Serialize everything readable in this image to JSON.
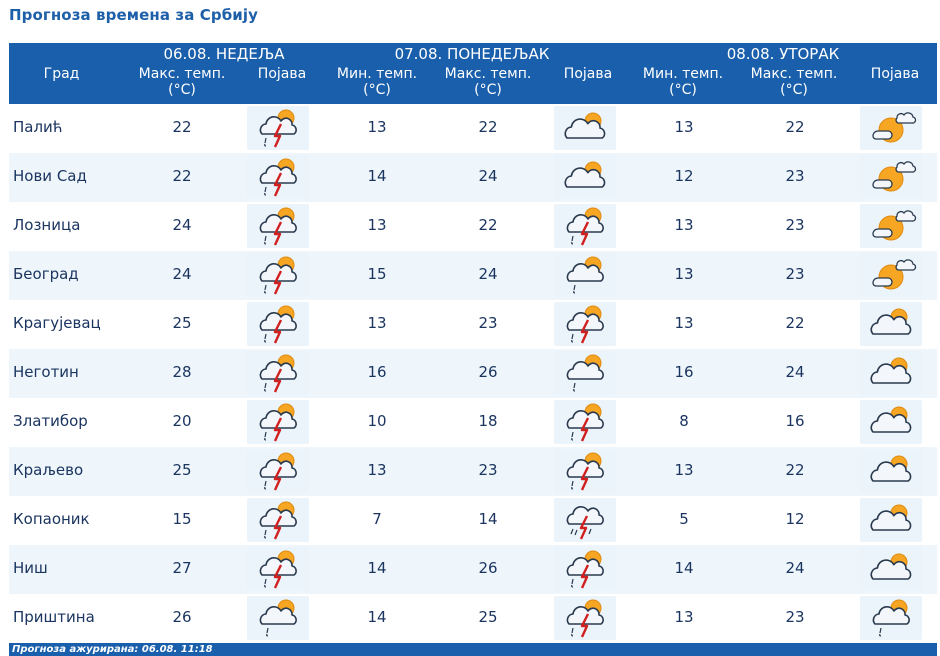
{
  "title": "Прогноза времена за Србију",
  "header": {
    "city_col": "Град",
    "days": [
      {
        "date": "06.08. НЕДЕЉА",
        "cols": [
          "Макс. темп. (°C)",
          "Појава"
        ]
      },
      {
        "date": "07.08. ПОНЕДЕЉАК",
        "cols": [
          "Мин. темп. (°C)",
          "Макс. темп. (°C)",
          "Појава"
        ]
      },
      {
        "date": "08.08. УТОРАК",
        "cols": [
          "Мин. темп. (°C)",
          "Макс. темп. (°C)",
          "Појава"
        ]
      }
    ]
  },
  "rows": [
    {
      "city": "Палић",
      "d1_max": "22",
      "d1_icon": "thunderstorm-icon",
      "d2_min": "13",
      "d2_max": "22",
      "d2_icon": "partly-cloudy-icon",
      "d3_min": "13",
      "d3_max": "22",
      "d3_icon": "mostly-sunny-icon"
    },
    {
      "city": "Нови Сад",
      "d1_max": "22",
      "d1_icon": "thunderstorm-icon",
      "d2_min": "14",
      "d2_max": "24",
      "d2_icon": "partly-cloudy-icon",
      "d3_min": "12",
      "d3_max": "23",
      "d3_icon": "mostly-sunny-icon"
    },
    {
      "city": "Лозница",
      "d1_max": "24",
      "d1_icon": "thunderstorm-icon",
      "d2_min": "13",
      "d2_max": "22",
      "d2_icon": "thunderstorm-icon",
      "d3_min": "13",
      "d3_max": "23",
      "d3_icon": "mostly-sunny-icon"
    },
    {
      "city": "Београд",
      "d1_max": "24",
      "d1_icon": "thunderstorm-icon",
      "d2_min": "15",
      "d2_max": "24",
      "d2_icon": "light-rain-icon",
      "d3_min": "13",
      "d3_max": "23",
      "d3_icon": "mostly-sunny-icon"
    },
    {
      "city": "Крагујевац",
      "d1_max": "25",
      "d1_icon": "thunderstorm-icon",
      "d2_min": "13",
      "d2_max": "23",
      "d2_icon": "thunderstorm-icon",
      "d3_min": "13",
      "d3_max": "22",
      "d3_icon": "partly-cloudy-icon"
    },
    {
      "city": "Неготин",
      "d1_max": "28",
      "d1_icon": "thunderstorm-icon",
      "d2_min": "16",
      "d2_max": "26",
      "d2_icon": "light-rain-icon",
      "d3_min": "16",
      "d3_max": "24",
      "d3_icon": "partly-cloudy-icon"
    },
    {
      "city": "Златибор",
      "d1_max": "20",
      "d1_icon": "thunderstorm-icon",
      "d2_min": "10",
      "d2_max": "18",
      "d2_icon": "thunderstorm-icon",
      "d3_min": "8",
      "d3_max": "16",
      "d3_icon": "partly-cloudy-icon"
    },
    {
      "city": "Краљево",
      "d1_max": "25",
      "d1_icon": "thunderstorm-icon",
      "d2_min": "13",
      "d2_max": "23",
      "d2_icon": "thunderstorm-icon",
      "d3_min": "13",
      "d3_max": "22",
      "d3_icon": "partly-cloudy-icon"
    },
    {
      "city": "Копаоник",
      "d1_max": "15",
      "d1_icon": "thunderstorm-icon",
      "d2_min": "7",
      "d2_max": "14",
      "d2_icon": "cloudy-thunderstorm-icon",
      "d3_min": "5",
      "d3_max": "12",
      "d3_icon": "partly-cloudy-icon"
    },
    {
      "city": "Ниш",
      "d1_max": "27",
      "d1_icon": "thunderstorm-icon",
      "d2_min": "14",
      "d2_max": "26",
      "d2_icon": "thunderstorm-icon",
      "d3_min": "14",
      "d3_max": "24",
      "d3_icon": "partly-cloudy-icon"
    },
    {
      "city": "Приштина",
      "d1_max": "26",
      "d1_icon": "light-rain-icon",
      "d2_min": "14",
      "d2_max": "25",
      "d2_icon": "thunderstorm-icon",
      "d3_min": "13",
      "d3_max": "23",
      "d3_icon": "light-rain-icon"
    }
  ],
  "footer": "Прогноза ажурирана:  06.08.  11:18",
  "colors": {
    "header_bg": "#1a5fab",
    "title": "#1d5fa8",
    "text": "#1b3560",
    "row_alt": "#eef6fb",
    "sun": "#f6a623"
  }
}
